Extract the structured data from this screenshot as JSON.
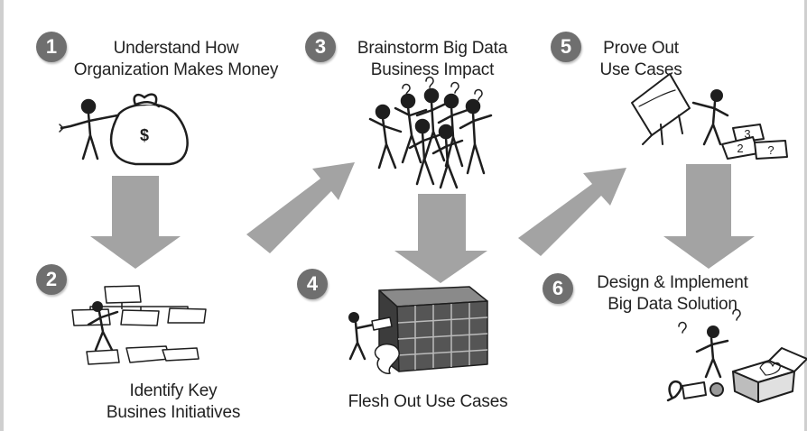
{
  "steps": [
    {
      "number": "1",
      "lines": [
        "Understand How",
        "Organization Makes Money"
      ]
    },
    {
      "number": "2",
      "lines": [
        "Identify Key",
        "Busines Initiatives"
      ]
    },
    {
      "number": "3",
      "lines": [
        "Brainstorm Big Data",
        "Business Impact"
      ]
    },
    {
      "number": "4",
      "lines": [
        "Flesh Out Use Cases"
      ]
    },
    {
      "number": "5",
      "lines": [
        "Prove Out",
        "Use Cases"
      ]
    },
    {
      "number": "6",
      "lines": [
        "Design & Implement",
        "Big Data Solution"
      ]
    }
  ],
  "art": {
    "money_bag_symbol": "$",
    "card_symbols": [
      "3",
      "2",
      "?"
    ]
  },
  "colors": {
    "arrow": "#a3a3a3",
    "badge": "#6f6f6f",
    "figure": "#1e1e1e"
  }
}
